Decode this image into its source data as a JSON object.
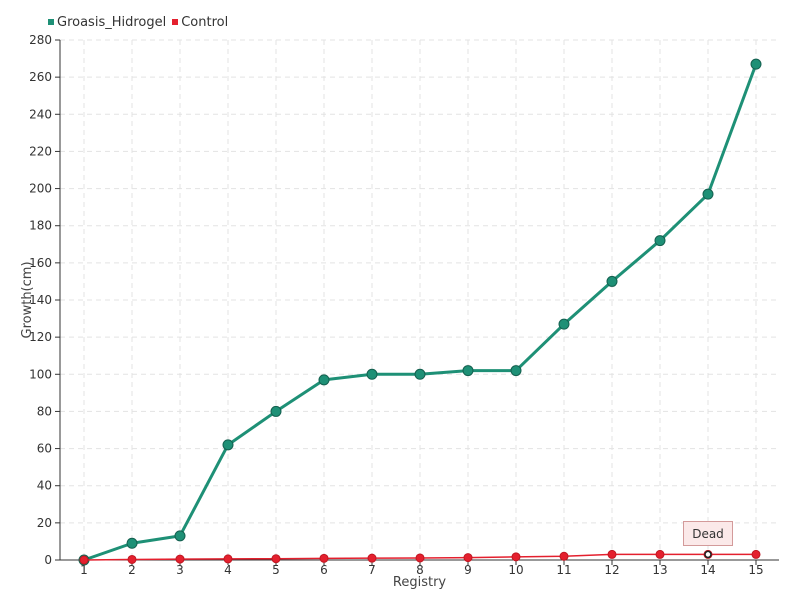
{
  "chart_data": {
    "type": "line",
    "categories": [
      "1",
      "2",
      "3",
      "4",
      "5",
      "6",
      "7",
      "8",
      "9",
      "10",
      "11",
      "12",
      "13",
      "14",
      "15"
    ],
    "series": [
      {
        "name": "Groasis_Hidrogel",
        "color": "#1e9076",
        "values": [
          0,
          9,
          13,
          62,
          80,
          97,
          100,
          100,
          102,
          102,
          127,
          150,
          172,
          197,
          267
        ]
      },
      {
        "name": "Control",
        "color": "#e4202e",
        "values": [
          0,
          0.3,
          0.5,
          0.6,
          0.7,
          0.9,
          1.0,
          1.1,
          1.3,
          1.7,
          2.0,
          3,
          3,
          3,
          3
        ]
      }
    ],
    "xlabel": "Registry",
    "ylabel": "Growth(cm)",
    "ylim": [
      0,
      280
    ],
    "yticks": [
      0,
      20,
      40,
      60,
      80,
      100,
      120,
      140,
      160,
      180,
      200,
      220,
      240,
      260,
      280
    ],
    "grid": true,
    "legend": "top-left",
    "annotation": {
      "text": "Dead",
      "series": "Control",
      "category": "14"
    }
  }
}
